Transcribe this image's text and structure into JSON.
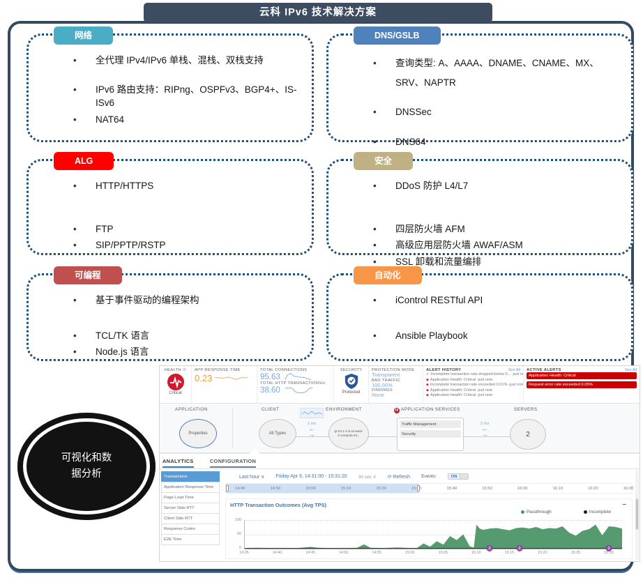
{
  "title": "云科 IPv6 技术解决方案",
  "icons": {
    "gear": "⚙",
    "chevron_down": "∨",
    "refresh": "⟳",
    "minus": "–"
  },
  "boxes": [
    {
      "label": "网络",
      "color": "#4bacc6",
      "items": [
        "全代理 IPv4/IPv6 单栈、混栈、双栈支持",
        "IPv6 路由支持：RIPng、OSPFv3、BGP4+、IS-ISv6",
        "NAT64"
      ]
    },
    {
      "label": "DNS/GSLB",
      "color": "#4f81bd",
      "items": [
        "查询类型: A、AAAA、DNAME、CNAME、MX、SRV、NAPTR",
        "DNSSec",
        "DNS64"
      ]
    },
    {
      "label": "ALG",
      "color": "#fe0000",
      "items": [
        "HTTP/HTTPS",
        "FTP",
        "SIP/PPTP/RSTP"
      ]
    },
    {
      "label": "安全",
      "color": "#bfb183",
      "items": [
        "DDoS 防护 L4/L7",
        "四层防火墙 AFM",
        "高级应用层防火墙 AWAF/ASM",
        "SSL 卸载和流量编排"
      ]
    },
    {
      "label": "可编程",
      "color": "#c0504d",
      "items": [
        "基于事件驱动的编程架构",
        "TCL/TK 语言",
        "Node.js 语言"
      ]
    },
    {
      "label": "自动化",
      "color": "#f79646",
      "items": [
        "iControl RESTful API",
        "Ansible Playbook"
      ]
    }
  ],
  "ellipse": {
    "line1": "可视化和数",
    "line2": "据分析"
  },
  "dashboard": {
    "health": {
      "label": "HEALTH",
      "status": "Critical"
    },
    "app_response": {
      "label": "APP RESPONSE TIME",
      "value": "0.23"
    },
    "connections": {
      "label": "TOTAL CONNECTIONS",
      "value": "95.63"
    },
    "transactions": {
      "label": "TOTAL HTTP TRANSACTIONS/s",
      "value": "38.60"
    },
    "security": {
      "label": "SECURITY",
      "status": "Protected"
    },
    "protection": [
      {
        "label": "PROTECTION MODE",
        "value": "Transparent"
      },
      {
        "label": "BAD TRAFFIC",
        "value": "100.00%"
      },
      {
        "label": "FINDINGS",
        "value": "None"
      }
    ],
    "alert_history": {
      "title": "ALERT HISTORY",
      "see_all": "See All",
      "items": [
        {
          "glyph": "✔",
          "mod": "ok",
          "text": "Incomplete transaction rate dropped below 0... -just now"
        },
        {
          "glyph": "◆",
          "mod": "crit",
          "text": "Application Health: Critical -just now"
        },
        {
          "glyph": "◆",
          "mod": "crit",
          "text": "Incomplete transaction rate exceeded 0.01% -just now"
        },
        {
          "glyph": "◆",
          "mod": "crit",
          "text": "Application Health: Critical -just now"
        },
        {
          "glyph": "◆",
          "mod": "crit",
          "text": "Application Health: Critical -just now"
        }
      ]
    },
    "active_alerts": {
      "title": "ACTIVE ALERTS",
      "see_all": "See All",
      "items": [
        "Application Health: Critical",
        "Request error rate exceeded 0.05%"
      ]
    },
    "map": {
      "application": {
        "label": "APPLICATION",
        "node": "Properties"
      },
      "client": {
        "label": "CLIENT",
        "node": "All Types"
      },
      "latency1": "1 ms",
      "environment": {
        "label": "ENVIRONMENT",
        "node": "ip-10-1-1-9.us-west-2.compute.int..."
      },
      "services": {
        "label": "APPLICATION SERVICES",
        "logo": "f5",
        "items": [
          "Traffic Management",
          "Security"
        ]
      },
      "latency2": "2 ms",
      "servers": {
        "label": "SERVERS",
        "node": "2"
      }
    },
    "tabs": {
      "analytics": "ANALYTICS",
      "configuration": "CONFIGURATION"
    },
    "sidebar": [
      {
        "label": "Transactions",
        "mod": "selected"
      },
      {
        "label": "Application Response Time"
      },
      {
        "label": "Page Load Time"
      },
      {
        "label": "Server Side RTT"
      },
      {
        "label": "Client Side RTT"
      },
      {
        "label": "Response Codes"
      },
      {
        "label": "E2E Time"
      }
    ],
    "toolbar": {
      "range": "Last hour",
      "date": "Friday Apr 6, 14:31:00 - 15:31:20",
      "interval": "30 sec",
      "refresh": "Refresh",
      "events_label": "Events:",
      "events_state": "ON"
    },
    "timeline": {
      "ticks": [
        "14:40",
        "14:50",
        "15:00",
        "15:10",
        "15:20",
        "15:30",
        "15:40",
        "15:50",
        "16:00",
        "16:10",
        "16:20",
        "16:30"
      ]
    }
  },
  "chart_data": {
    "type": "area",
    "title": "HTTP Transaction Outcomes (Avg TPS)",
    "legend": [
      {
        "name": "Passthrough",
        "color": "#3f9e63"
      },
      {
        "name": "Incomplete",
        "color": "#1a1a1a"
      }
    ],
    "ylim": [
      0,
      100
    ],
    "y_ticks": [
      0,
      50,
      100
    ],
    "x_ticks": [
      "14:35",
      "14:40",
      "14:45",
      "14:50",
      "14:55",
      "15:00",
      "15:05",
      "15:10",
      "15:15",
      "15:20",
      "15:25",
      "15:30"
    ],
    "x_range_minutes": 57,
    "series": [
      {
        "name": "Passthrough",
        "points": [
          [
            0,
            2
          ],
          [
            2,
            3
          ],
          [
            4,
            2
          ],
          [
            6,
            2
          ],
          [
            8,
            2
          ],
          [
            10,
            6
          ],
          [
            11,
            3
          ],
          [
            13,
            2
          ],
          [
            15,
            2
          ],
          [
            17,
            3
          ],
          [
            18,
            15
          ],
          [
            19,
            3
          ],
          [
            21,
            2
          ],
          [
            23,
            4
          ],
          [
            25,
            2
          ],
          [
            26,
            2
          ],
          [
            27,
            18
          ],
          [
            28,
            7
          ],
          [
            29,
            26
          ],
          [
            30,
            14
          ],
          [
            31,
            44
          ],
          [
            32,
            30
          ],
          [
            33,
            50
          ],
          [
            34,
            8
          ],
          [
            34.6,
            4
          ],
          [
            35,
            84
          ],
          [
            35.5,
            70
          ],
          [
            36,
            66
          ],
          [
            37,
            70
          ],
          [
            38,
            72
          ],
          [
            39,
            68
          ],
          [
            40,
            64
          ],
          [
            41,
            72
          ],
          [
            42,
            74
          ],
          [
            43,
            70
          ],
          [
            44,
            76
          ],
          [
            45,
            68
          ],
          [
            46,
            72
          ],
          [
            47,
            70
          ],
          [
            48,
            78
          ],
          [
            49,
            56
          ],
          [
            50,
            45
          ],
          [
            51,
            62
          ],
          [
            52,
            68
          ],
          [
            53,
            84
          ],
          [
            54,
            47
          ],
          [
            55,
            78
          ],
          [
            56,
            76
          ],
          [
            57,
            70
          ]
        ]
      },
      {
        "name": "Incomplete",
        "points": [
          [
            0,
            0
          ],
          [
            57,
            0
          ]
        ]
      }
    ],
    "events": [
      {
        "t": 37,
        "label": "2"
      },
      {
        "t": 41.5,
        "label": "2"
      },
      {
        "t": 55,
        "label": "2"
      }
    ]
  }
}
